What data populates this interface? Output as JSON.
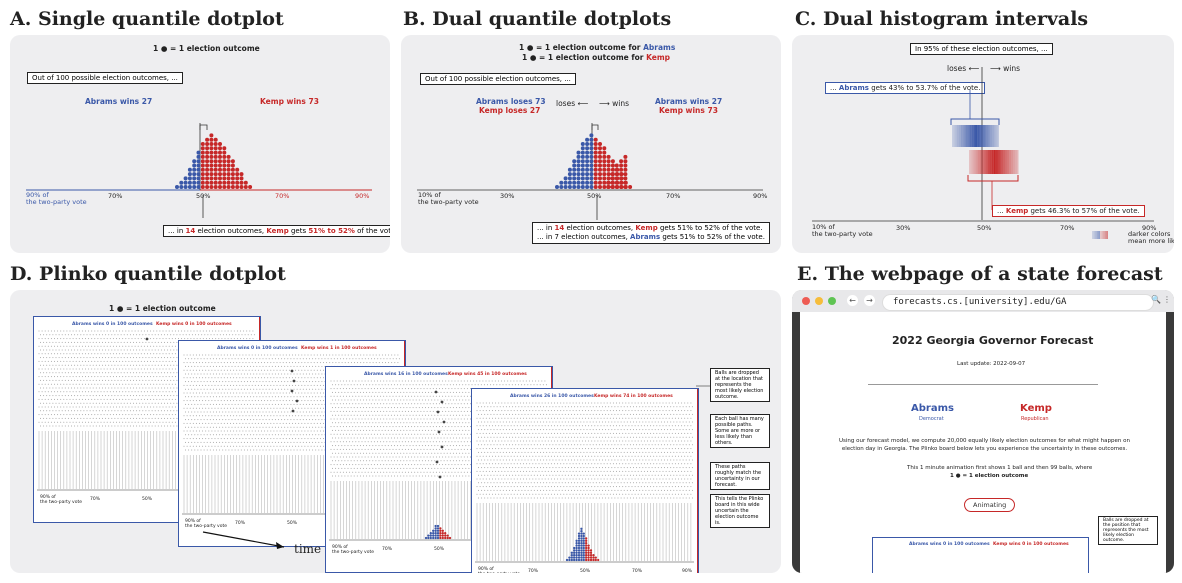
{
  "titles": {
    "a": "A. Single quantile dotplot",
    "b": "B. Dual quantile dotplots",
    "c": "C. Dual histogram intervals",
    "d": "D. Plinko quantile dotplot",
    "e": "E. The webpage of a state forecast"
  },
  "panel_a": {
    "legend": "1 ● = 1 election outcome",
    "intro": "Out of 100 possible election outcomes, ...",
    "abrams": "Abrams wins 27",
    "kemp": "Kemp wins 73",
    "axis_label": "90% of\nthe two-party vote",
    "ticks": [
      "90% of",
      "70%",
      "50%",
      "70%",
      "90%"
    ],
    "callout": {
      "pre": "... in ",
      "n": "14",
      "mid": " election outcomes, ",
      "who": "Kemp",
      "mid2": " gets ",
      "range": "51% to 52%",
      "post": " of the vote."
    }
  },
  "panel_b": {
    "legend_abrams": {
      "pre": "1 ● = 1 election outcome for ",
      "who": "Abrams"
    },
    "legend_kemp": {
      "pre": "1 ● = 1 election outcome for ",
      "who": "Kemp"
    },
    "intro": "Out of 100 possible election outcomes, ...",
    "abrams_loses": "Abrams loses 73",
    "kemp_loses": "Kemp loses 27",
    "abrams_wins": "Abrams wins 27",
    "kemp_wins": "Kemp wins 73",
    "loses": "loses ⟵",
    "wins": "⟶  wins",
    "axis_label": "10% of\nthe two-party vote",
    "ticks": [
      "30%",
      "50%",
      "70%",
      "90%"
    ],
    "callout1": {
      "pre": "... in ",
      "n": "14",
      "mid": " election outcomes, ",
      "who": "Kemp",
      "post": " gets 51% to 52% of the vote."
    },
    "callout2": {
      "pre": "... in 7 election outcomes, ",
      "who": "Abrams",
      "post": " gets 51% to 52% of the vote."
    }
  },
  "panel_c": {
    "intro": "In 95% of these election outcomes, ...",
    "loses": "loses ⟵",
    "wins": "⟶  wins",
    "abrams_callout": {
      "pre": "... ",
      "who": "Abrams",
      "post": " gets 43% to 53.7% of the vote."
    },
    "kemp_callout": {
      "pre": "... ",
      "who": "Kemp",
      "post": " gets 46.3% to 57% of the vote."
    },
    "axis_label": "10% of\nthe two-party vote",
    "ticks": [
      "30%",
      "50%",
      "70%",
      "90%"
    ],
    "legend_dark": "darker colors",
    "legend_likely": "mean  more likely"
  },
  "panel_d": {
    "legend": "1 ● = 1 election outcome",
    "frames": [
      {
        "abrams": "Abrams wins 0 in 100 outcomes",
        "kemp": "Kemp wins 0 in 100 outcomes",
        "axis": "90% of\nthe two-party vote",
        "ticks": [
          "70%",
          "50%"
        ]
      },
      {
        "abrams": "Abrams wins 0 in 100 outcomes",
        "kemp": "Kemp wins 1 in 100 outcomes",
        "axis": "90% of\nthe two-party vote",
        "ticks": [
          "70%",
          "50%"
        ]
      },
      {
        "abrams": "Abrams wins 16 in 100 outcomes",
        "kemp": "Kemp wins 45 in 100 outcomes",
        "axis": "90% of\nthe two-party vote",
        "ticks": [
          "70%",
          "50%"
        ]
      },
      {
        "abrams": "Abrams wins 26 in 100 outcomes",
        "kemp": "Kemp wins 74 in 100 outcomes",
        "axis": "90% of\nthe two-party vote",
        "ticks": [
          "70%",
          "50%",
          "70%",
          "90%"
        ]
      }
    ],
    "notes": [
      "Balls are dropped at the location that represents the most likely election outcome.",
      "Each ball has many possible paths. Some are more or less likely than others.",
      "These paths roughly match the uncertainty in our forecast.",
      "This tells the Plinko board in this wide uncertain the election outcome is."
    ],
    "time": "time"
  },
  "panel_e": {
    "url": "forecasts.cs.[university].edu/GA",
    "heading": "2022 Georgia Governor Forecast",
    "updated": "Last update: 2022-09-07",
    "abrams": {
      "name": "Abrams",
      "party": "Democrat"
    },
    "kemp": {
      "name": "Kemp",
      "party": "Republican"
    },
    "para": "Using our forecast model, we compute 20,000 equally likely election outcomes for what might happen on election day in Georgia. The Plinko board below lets you experience the uncertainty in these outcomes.",
    "anim_line": "This 1 minute animation first shows 1 ball and then 99 balls, where",
    "legend": "1 ● = 1 election outcome",
    "button": "Animating",
    "note": "Balls are dropped at the position that represents the most likely election outcome.",
    "abrams_count": "Abrams wins 0 in 100 outcomes",
    "kemp_count": "Kemp wins 0 in 100 outcomes"
  },
  "colors": {
    "blue": "#3a58a8",
    "red": "#c62828",
    "panel": "#eeeef0"
  }
}
